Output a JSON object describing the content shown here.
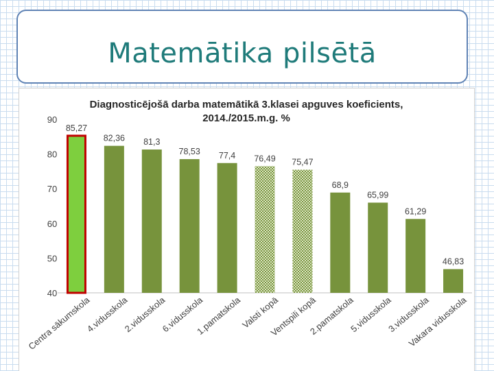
{
  "slide": {
    "title": "Matemātika pilsētā"
  },
  "colors": {
    "bar": "#77933c",
    "highlight_fill": "#7ecf3e",
    "highlight_border": "#c00000",
    "pattern": "#77933c",
    "title": "#1f7b7a"
  },
  "chart_data": {
    "type": "bar",
    "title_lines": [
      "Diagnosticējošā darba matemātikā 3.klasei apguves koeficients,",
      "2014./2015.m.g. %"
    ],
    "categories": [
      "Centra sākumskola",
      "4.vidusskola",
      "2.vidusskola",
      "6.vidusskola",
      "1.pamatskola",
      "Valsti kopā",
      "Ventspili kopā",
      "2.pamatskola",
      "5.vidusskola",
      "3.vidusskola",
      "Vakara vidusskola"
    ],
    "values": [
      85.27,
      82.36,
      81.3,
      78.53,
      77.4,
      76.49,
      75.47,
      68.9,
      65.99,
      61.29,
      46.83
    ],
    "value_labels": [
      "85,27",
      "82,36",
      "81,3",
      "78,53",
      "77,4",
      "76,49",
      "75,47",
      "68,9",
      "65,99",
      "61,29",
      "46,83"
    ],
    "bar_styles": [
      "highlight",
      "solid",
      "solid",
      "solid",
      "solid",
      "pattern",
      "pattern",
      "solid",
      "solid",
      "solid",
      "solid"
    ],
    "ylim": [
      40,
      90
    ],
    "yticks": [
      40,
      50,
      60,
      70,
      80,
      90
    ],
    "grid": false,
    "legend": "none"
  }
}
